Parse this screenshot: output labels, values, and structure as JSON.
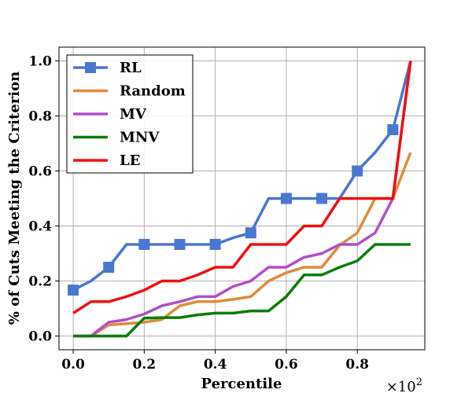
{
  "chart_data": {
    "type": "line",
    "title": "",
    "xlabel": "Percentile",
    "ylabel": "% of Cuts Meeting the Criterion",
    "x_multiplier_label": "×10",
    "x_multiplier_exp": "2",
    "xlim": [
      -0.04,
      0.99
    ],
    "ylim": [
      -0.05,
      1.05
    ],
    "xticks": [
      0.0,
      0.2,
      0.4,
      0.6,
      0.8
    ],
    "xtick_labels": [
      "0.0",
      "0.2",
      "0.4",
      "0.6",
      "0.8"
    ],
    "yticks": [
      0.0,
      0.2,
      0.4,
      0.6,
      0.8,
      1.0
    ],
    "ytick_labels": [
      "0.0",
      "0.2",
      "0.4",
      "0.6",
      "0.8",
      "1.0"
    ],
    "grid": true,
    "legend_position": "top-left",
    "x": [
      0.0,
      0.05,
      0.1,
      0.15,
      0.2,
      0.25,
      0.3,
      0.35,
      0.4,
      0.45,
      0.5,
      0.55,
      0.6,
      0.65,
      0.7,
      0.75,
      0.8,
      0.85,
      0.9,
      0.95
    ],
    "series": [
      {
        "name": "RL",
        "color": "#4a77d0",
        "marker": "square",
        "marker_indices": [
          0,
          2,
          4,
          6,
          8,
          10,
          12,
          14,
          16,
          18
        ],
        "values": [
          0.167,
          0.2,
          0.25,
          0.333,
          0.333,
          0.333,
          0.333,
          0.333,
          0.333,
          0.357,
          0.375,
          0.5,
          0.5,
          0.5,
          0.5,
          0.5,
          0.6,
          0.667,
          0.75,
          1.0
        ]
      },
      {
        "name": "Random",
        "color": "#e08c3e",
        "marker": "none",
        "values": [
          0.0,
          0.0,
          0.04,
          0.045,
          0.05,
          0.06,
          0.11,
          0.125,
          0.125,
          0.133,
          0.143,
          0.2,
          0.23,
          0.25,
          0.25,
          0.33,
          0.375,
          0.5,
          0.5,
          0.667
        ]
      },
      {
        "name": "MV",
        "color": "#b04fc8",
        "marker": "none",
        "values": [
          0.0,
          0.0,
          0.05,
          0.06,
          0.08,
          0.11,
          0.125,
          0.143,
          0.143,
          0.18,
          0.2,
          0.25,
          0.25,
          0.286,
          0.3,
          0.333,
          0.333,
          0.375,
          0.5,
          1.0
        ]
      },
      {
        "name": "MNV",
        "color": "#0a7d0a",
        "marker": "none",
        "values": [
          0.0,
          0.0,
          0.0,
          0.0,
          0.065,
          0.067,
          0.067,
          0.077,
          0.083,
          0.083,
          0.091,
          0.091,
          0.143,
          0.222,
          0.222,
          0.25,
          0.273,
          0.333,
          0.333,
          0.333
        ]
      },
      {
        "name": "LE",
        "color": "#f01010",
        "marker": "none",
        "values": [
          0.083,
          0.125,
          0.125,
          0.143,
          0.167,
          0.2,
          0.2,
          0.222,
          0.25,
          0.25,
          0.333,
          0.333,
          0.333,
          0.4,
          0.4,
          0.5,
          0.5,
          0.5,
          0.5,
          1.0
        ]
      }
    ]
  }
}
